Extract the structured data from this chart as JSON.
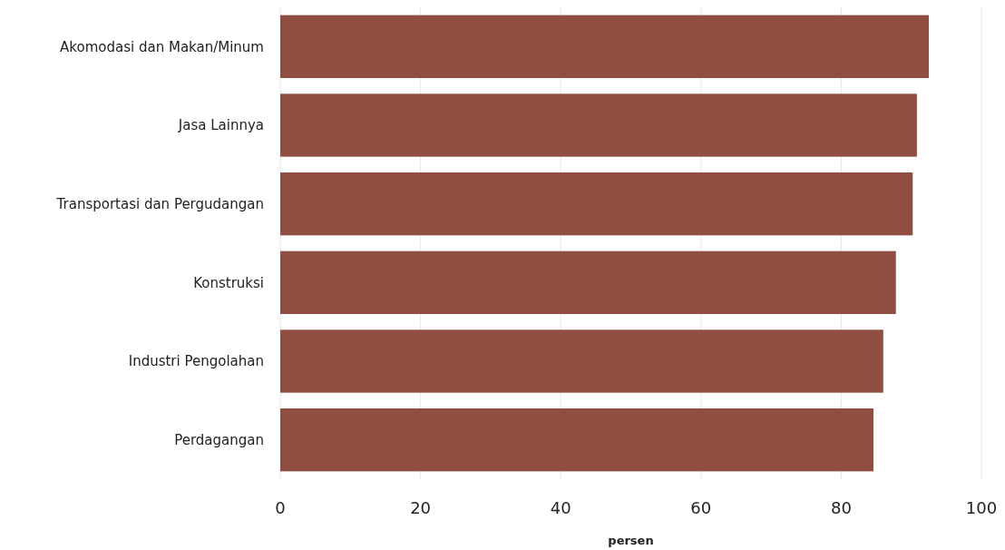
{
  "chart_data": {
    "type": "bar",
    "orientation": "horizontal",
    "xlabel": "persen",
    "categories": [
      "Akomodasi dan Makan/Minum",
      "Jasa Lainnya",
      "Transportasi dan Pergudangan",
      "Konstruksi",
      "Industri Pengolahan",
      "Perdagangan"
    ],
    "values": [
      92.5,
      90.8,
      90.2,
      87.8,
      86.0,
      84.6
    ],
    "color": "#8f4e41",
    "xlim": [
      0,
      100
    ],
    "xticks": [
      0,
      20,
      40,
      60,
      80,
      100
    ],
    "grid": "x"
  }
}
